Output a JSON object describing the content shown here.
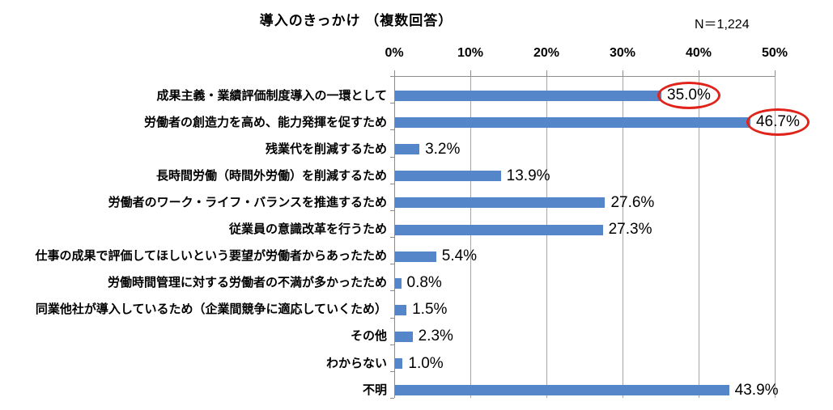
{
  "header": {
    "title": "導入のきっかけ （複数回答）",
    "n_label": "N＝1,224"
  },
  "chart_data": {
    "type": "bar",
    "orientation": "horizontal",
    "title": "導入のきっかけ （複数回答）",
    "sample_size": "N＝1,224",
    "categories": [
      "成果主義・業績評価制度導入の一環として",
      "労働者の創造力を高め、能力発揮を促すため",
      "残業代を削減するため",
      "長時間労働（時間外労働）を削減するため",
      "労働者のワーク・ライフ・バランスを推進するため",
      "従業員の意識改革を行うため",
      "仕事の成果で評価してほしいという要望が労働者からあったため",
      "労働時間管理に対する労働者の不満が多かったため",
      "同業他社が導入しているため（企業間競争に適応していくため）",
      "その他",
      "わからない",
      "不明"
    ],
    "values": [
      35.0,
      46.7,
      3.2,
      13.9,
      27.6,
      27.3,
      5.4,
      0.8,
      1.5,
      2.3,
      1.0,
      43.9
    ],
    "value_labels": [
      "35.0%",
      "46.7%",
      "3.2%",
      "13.9%",
      "27.6%",
      "27.3%",
      "5.4%",
      "0.8%",
      "1.5%",
      "2.3%",
      "1.0%",
      "43.9%"
    ],
    "circled_value_indices": [
      0,
      1
    ],
    "x_axis": {
      "position": "top",
      "ticks": [
        "0%",
        "10%",
        "20%",
        "30%",
        "40%",
        "50%"
      ],
      "min": 0,
      "max": 50,
      "grid": true
    },
    "legend": "none",
    "colors": {
      "bar": "#5586c9",
      "gridline": "#a6a6a6",
      "axis": "#8c8c8c",
      "annotation_circle": "#e0231b",
      "text": "#000000"
    }
  }
}
